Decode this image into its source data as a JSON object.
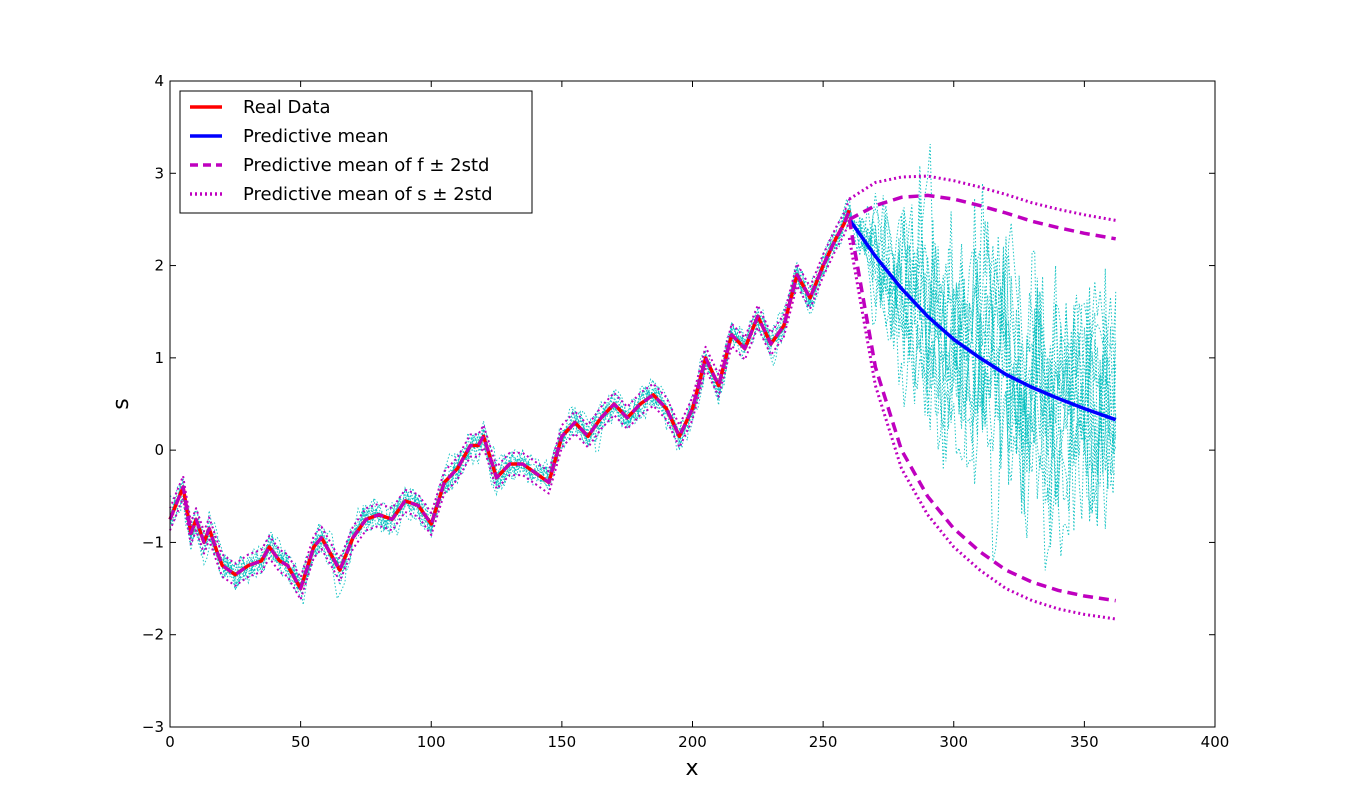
{
  "chart_data": {
    "type": "line",
    "title": "",
    "xlabel": "x",
    "ylabel": "s",
    "xlim": [
      0,
      400
    ],
    "ylim": [
      -3,
      4
    ],
    "xticks": [
      0,
      50,
      100,
      150,
      200,
      250,
      300,
      350,
      400
    ],
    "yticks": [
      -3,
      -2,
      -1,
      0,
      1,
      2,
      3,
      4
    ],
    "xtick_labels": [
      "0",
      "50",
      "100",
      "150",
      "200",
      "250",
      "300",
      "350",
      "400"
    ],
    "ytick_labels": [
      "−3",
      "−2",
      "−1",
      "0",
      "1",
      "2",
      "3",
      "4"
    ],
    "grid": false,
    "legend_position": "top-left",
    "legend": [
      {
        "label": "Real Data",
        "color": "#ff0000",
        "style": "solid"
      },
      {
        "label": "Predictive mean",
        "color": "#0000ff",
        "style": "solid"
      },
      {
        "label": "Predictive mean of f ± 2std",
        "color": "#bf00bf",
        "style": "dashed"
      },
      {
        "label": "Predictive mean of s ± 2std",
        "color": "#bf00bf",
        "style": "dotted"
      }
    ],
    "sample_color": "#00bfbf",
    "real_data": {
      "x": [
        0,
        5,
        8,
        10,
        13,
        15,
        18,
        20,
        25,
        30,
        35,
        38,
        42,
        45,
        50,
        55,
        58,
        62,
        65,
        70,
        75,
        80,
        85,
        90,
        95,
        100,
        105,
        110,
        115,
        118,
        120,
        125,
        130,
        135,
        140,
        145,
        150,
        155,
        160,
        165,
        170,
        175,
        180,
        185,
        190,
        195,
        200,
        205,
        210,
        215,
        220,
        225,
        230,
        235,
        240,
        245,
        250,
        255,
        258,
        260
      ],
      "y": [
        -0.75,
        -0.4,
        -0.9,
        -0.75,
        -1.0,
        -0.85,
        -1.1,
        -1.25,
        -1.35,
        -1.25,
        -1.2,
        -1.05,
        -1.2,
        -1.25,
        -1.5,
        -1.05,
        -0.95,
        -1.15,
        -1.3,
        -0.95,
        -0.75,
        -0.7,
        -0.75,
        -0.55,
        -0.6,
        -0.8,
        -0.35,
        -0.2,
        0.05,
        0.05,
        0.15,
        -0.3,
        -0.15,
        -0.15,
        -0.25,
        -0.35,
        0.15,
        0.3,
        0.15,
        0.35,
        0.5,
        0.35,
        0.5,
        0.6,
        0.45,
        0.15,
        0.45,
        1.0,
        0.7,
        1.25,
        1.1,
        1.45,
        1.15,
        1.35,
        1.9,
        1.65,
        2.0,
        2.3,
        2.45,
        2.6
      ]
    },
    "predictive_mean": {
      "x": [
        260,
        270,
        280,
        290,
        300,
        310,
        320,
        330,
        340,
        350,
        362
      ],
      "y": [
        2.5,
        2.1,
        1.75,
        1.45,
        1.2,
        1.0,
        0.82,
        0.68,
        0.56,
        0.45,
        0.33
      ]
    },
    "f_upper": {
      "x": [
        260,
        270,
        280,
        290,
        300,
        310,
        320,
        330,
        340,
        350,
        362
      ],
      "y": [
        2.5,
        2.65,
        2.74,
        2.76,
        2.72,
        2.65,
        2.57,
        2.48,
        2.41,
        2.35,
        2.29
      ]
    },
    "f_lower": {
      "x": [
        260,
        265,
        270,
        280,
        290,
        300,
        310,
        320,
        330,
        340,
        350,
        362
      ],
      "y": [
        2.5,
        1.7,
        0.9,
        0.0,
        -0.5,
        -0.85,
        -1.1,
        -1.3,
        -1.43,
        -1.52,
        -1.58,
        -1.63
      ]
    },
    "s_upper": {
      "x": [
        260,
        270,
        280,
        290,
        300,
        310,
        320,
        330,
        340,
        350,
        362
      ],
      "y": [
        2.72,
        2.9,
        2.96,
        2.97,
        2.92,
        2.85,
        2.77,
        2.68,
        2.61,
        2.55,
        2.49
      ]
    },
    "s_lower": {
      "x": [
        260,
        265,
        270,
        280,
        290,
        300,
        310,
        320,
        330,
        340,
        350,
        362
      ],
      "y": [
        2.3,
        1.5,
        0.7,
        -0.2,
        -0.7,
        -1.05,
        -1.3,
        -1.5,
        -1.63,
        -1.72,
        -1.78,
        -1.83
      ]
    }
  }
}
